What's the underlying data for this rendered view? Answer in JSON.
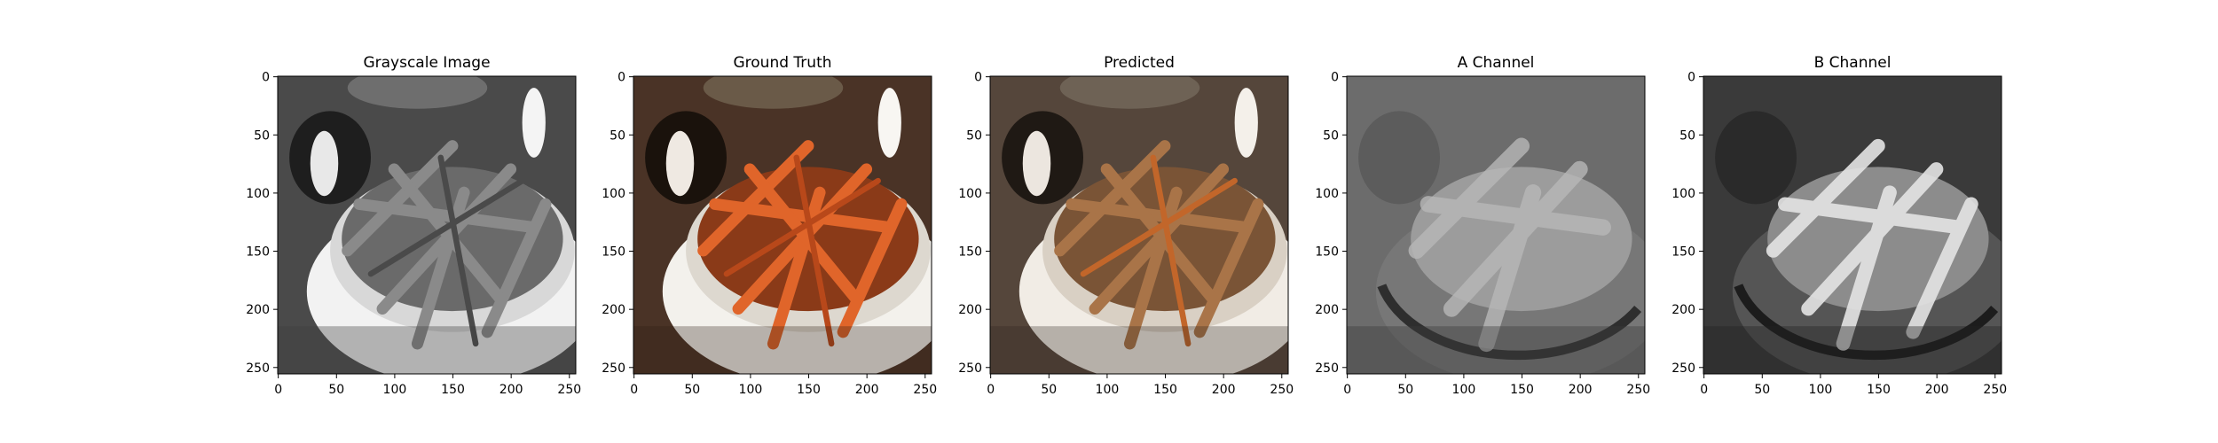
{
  "figure": {
    "panels": [
      {
        "title": "Grayscale Image",
        "kind": "grayscale"
      },
      {
        "title": "Ground Truth",
        "kind": "color"
      },
      {
        "title": "Predicted",
        "kind": "predicted"
      },
      {
        "title": "A Channel",
        "kind": "channel_a"
      },
      {
        "title": "B Channel",
        "kind": "channel_b"
      }
    ],
    "x_ticks": [
      "0",
      "50",
      "100",
      "150",
      "200",
      "250"
    ],
    "y_ticks": [
      "0",
      "50",
      "100",
      "150",
      "200",
      "250"
    ],
    "image_size": 256
  },
  "colors": {
    "background": "#ffffff",
    "axis": "#000000"
  }
}
